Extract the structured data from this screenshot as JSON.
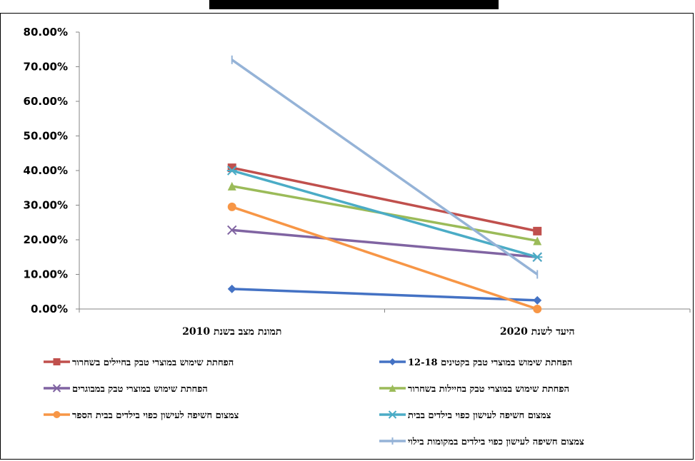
{
  "chart_data": {
    "type": "line",
    "title": "",
    "categories": [
      "תמונת מצב בשנת 2010",
      "היעד לשנת 2020"
    ],
    "y_ticks": [
      "0.00%",
      "10.00%",
      "20.00%",
      "30.00%",
      "40.00%",
      "50.00%",
      "60.00%",
      "70.00%",
      "80.00%"
    ],
    "ylim": [
      0,
      80
    ],
    "grid": false,
    "legend_position": "bottom",
    "series": [
      {
        "name": "הפחתת שימוש במוצרי טבק בקטינים 12-18",
        "values": [
          5.8,
          2.5
        ],
        "color": "#4472C4",
        "marker": "diamond"
      },
      {
        "name": "הפחתת שימוש במוצרי טבק בחיילים בשחרור",
        "values": [
          40.8,
          22.5
        ],
        "color": "#C0504D",
        "marker": "square"
      },
      {
        "name": "הפחתת שימוש במוצרי טבק בחיילות בשחרור",
        "values": [
          35.5,
          19.7
        ],
        "color": "#9BBB59",
        "marker": "triangle"
      },
      {
        "name": "הפחתת שימוש במוצרי טבק במבוגרים",
        "values": [
          22.8,
          15
        ],
        "color": "#8064A2",
        "marker": "x"
      },
      {
        "name": "צמצום חשיפה לעישון כפוי בילדים בבית",
        "values": [
          40,
          15
        ],
        "color": "#4BACC6",
        "marker": "star"
      },
      {
        "name": "צמצום חשיפה לעישון כפוי בילדים בבית הספר",
        "values": [
          29.5,
          0
        ],
        "color": "#F79646",
        "marker": "circle"
      },
      {
        "name": "צמצום חשיפה לעישון כפוי בילדים במקומות בילוי",
        "values": [
          72,
          10
        ],
        "color": "#95B3D7",
        "marker": "plus"
      }
    ]
  }
}
